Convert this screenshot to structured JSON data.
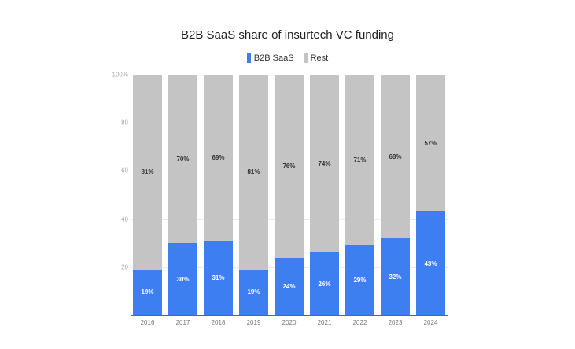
{
  "chart_data": {
    "type": "bar",
    "stacked": true,
    "title": "B2B SaaS share of insurtech VC funding",
    "xlabel": "",
    "ylabel": "",
    "ylim": [
      0,
      100
    ],
    "yticks": [
      "20",
      "40",
      "60",
      "80",
      "100%"
    ],
    "legend_position": "top",
    "grid": true,
    "categories": [
      "2016",
      "2017",
      "2018",
      "2019",
      "2020",
      "2021",
      "2022",
      "2023",
      "2024"
    ],
    "series": [
      {
        "name": "B2B SaaS",
        "color": "#3d7ef0",
        "values": [
          19,
          30,
          31,
          19,
          24,
          26,
          29,
          32,
          43
        ],
        "labels": [
          "19%",
          "30%",
          "31%",
          "19%",
          "24%",
          "26%",
          "29%",
          "32%",
          "43%"
        ]
      },
      {
        "name": "Rest",
        "color": "#c4c4c4",
        "values": [
          81,
          70,
          69,
          81,
          76,
          74,
          71,
          68,
          57
        ],
        "labels": [
          "81%",
          "70%",
          "69%",
          "81%",
          "76%",
          "74%",
          "71%",
          "68%",
          "57%"
        ]
      }
    ]
  }
}
